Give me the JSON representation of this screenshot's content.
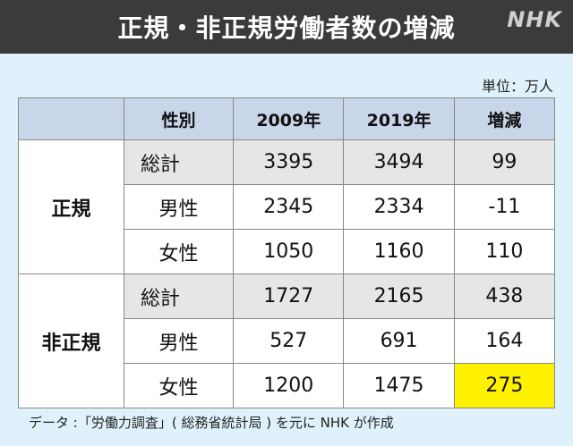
{
  "header": {
    "title": "正規・非正規労働者数の増減",
    "logo": "NHK"
  },
  "unit_label": "単位：万人",
  "chart_data": {
    "type": "table",
    "columns": [
      "",
      "性別",
      "2009年",
      "2019年",
      "増減"
    ],
    "groups": [
      {
        "name": "正規",
        "rows": [
          {
            "label": "総計",
            "y2009": "3395",
            "y2019": "3494",
            "change": "99"
          },
          {
            "label": "男性",
            "y2009": "2345",
            "y2019": "2334",
            "change": "-11"
          },
          {
            "label": "女性",
            "y2009": "1050",
            "y2019": "1160",
            "change": "110"
          }
        ]
      },
      {
        "name": "非正規",
        "rows": [
          {
            "label": "総計",
            "y2009": "1727",
            "y2019": "2165",
            "change": "438"
          },
          {
            "label": "男性",
            "y2009": "527",
            "y2019": "691",
            "change": "164"
          },
          {
            "label": "女性",
            "y2009": "1200",
            "y2019": "1475",
            "change": "275"
          }
        ]
      }
    ],
    "highlight_color": "#fff200",
    "header_color": "#c9d6ea",
    "total_row_color": "#e6e6e6"
  },
  "footer": {
    "source": "データ :「労働力調査」( 総務省統計局 ) を元に NHK が作成"
  }
}
